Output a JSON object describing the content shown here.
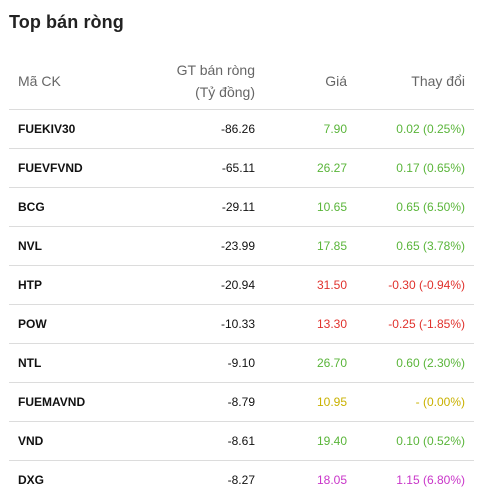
{
  "title": "Top bán ròng",
  "headers": {
    "code": "Mã CK",
    "net_line1": "GT bán ròng",
    "net_line2": "(Tỷ đồng)",
    "price": "Giá",
    "change": "Thay đổi"
  },
  "colors": {
    "up": "#5ab53a",
    "down": "#e0312c",
    "reference": "#c9b100",
    "ceiling": "#c936c9"
  },
  "rows": [
    {
      "code": "FUEKIV30",
      "net": "-86.26",
      "price": "7.90",
      "change": "0.02 (0.25%)",
      "status": "up"
    },
    {
      "code": "FUEVFVND",
      "net": "-65.11",
      "price": "26.27",
      "change": "0.17 (0.65%)",
      "status": "up"
    },
    {
      "code": "BCG",
      "net": "-29.11",
      "price": "10.65",
      "change": "0.65 (6.50%)",
      "status": "up"
    },
    {
      "code": "NVL",
      "net": "-23.99",
      "price": "17.85",
      "change": "0.65 (3.78%)",
      "status": "up"
    },
    {
      "code": "HTP",
      "net": "-20.94",
      "price": "31.50",
      "change": "-0.30 (-0.94%)",
      "status": "down"
    },
    {
      "code": "POW",
      "net": "-10.33",
      "price": "13.30",
      "change": "-0.25 (-1.85%)",
      "status": "down"
    },
    {
      "code": "NTL",
      "net": "-9.10",
      "price": "26.70",
      "change": "0.60 (2.30%)",
      "status": "up"
    },
    {
      "code": "FUEMAVND",
      "net": "-8.79",
      "price": "10.95",
      "change": "- (0.00%)",
      "status": "ref"
    },
    {
      "code": "VND",
      "net": "-8.61",
      "price": "19.40",
      "change": "0.10 (0.52%)",
      "status": "up"
    },
    {
      "code": "DXG",
      "net": "-8.27",
      "price": "18.05",
      "change": "1.15 (6.80%)",
      "status": "ceil"
    }
  ]
}
